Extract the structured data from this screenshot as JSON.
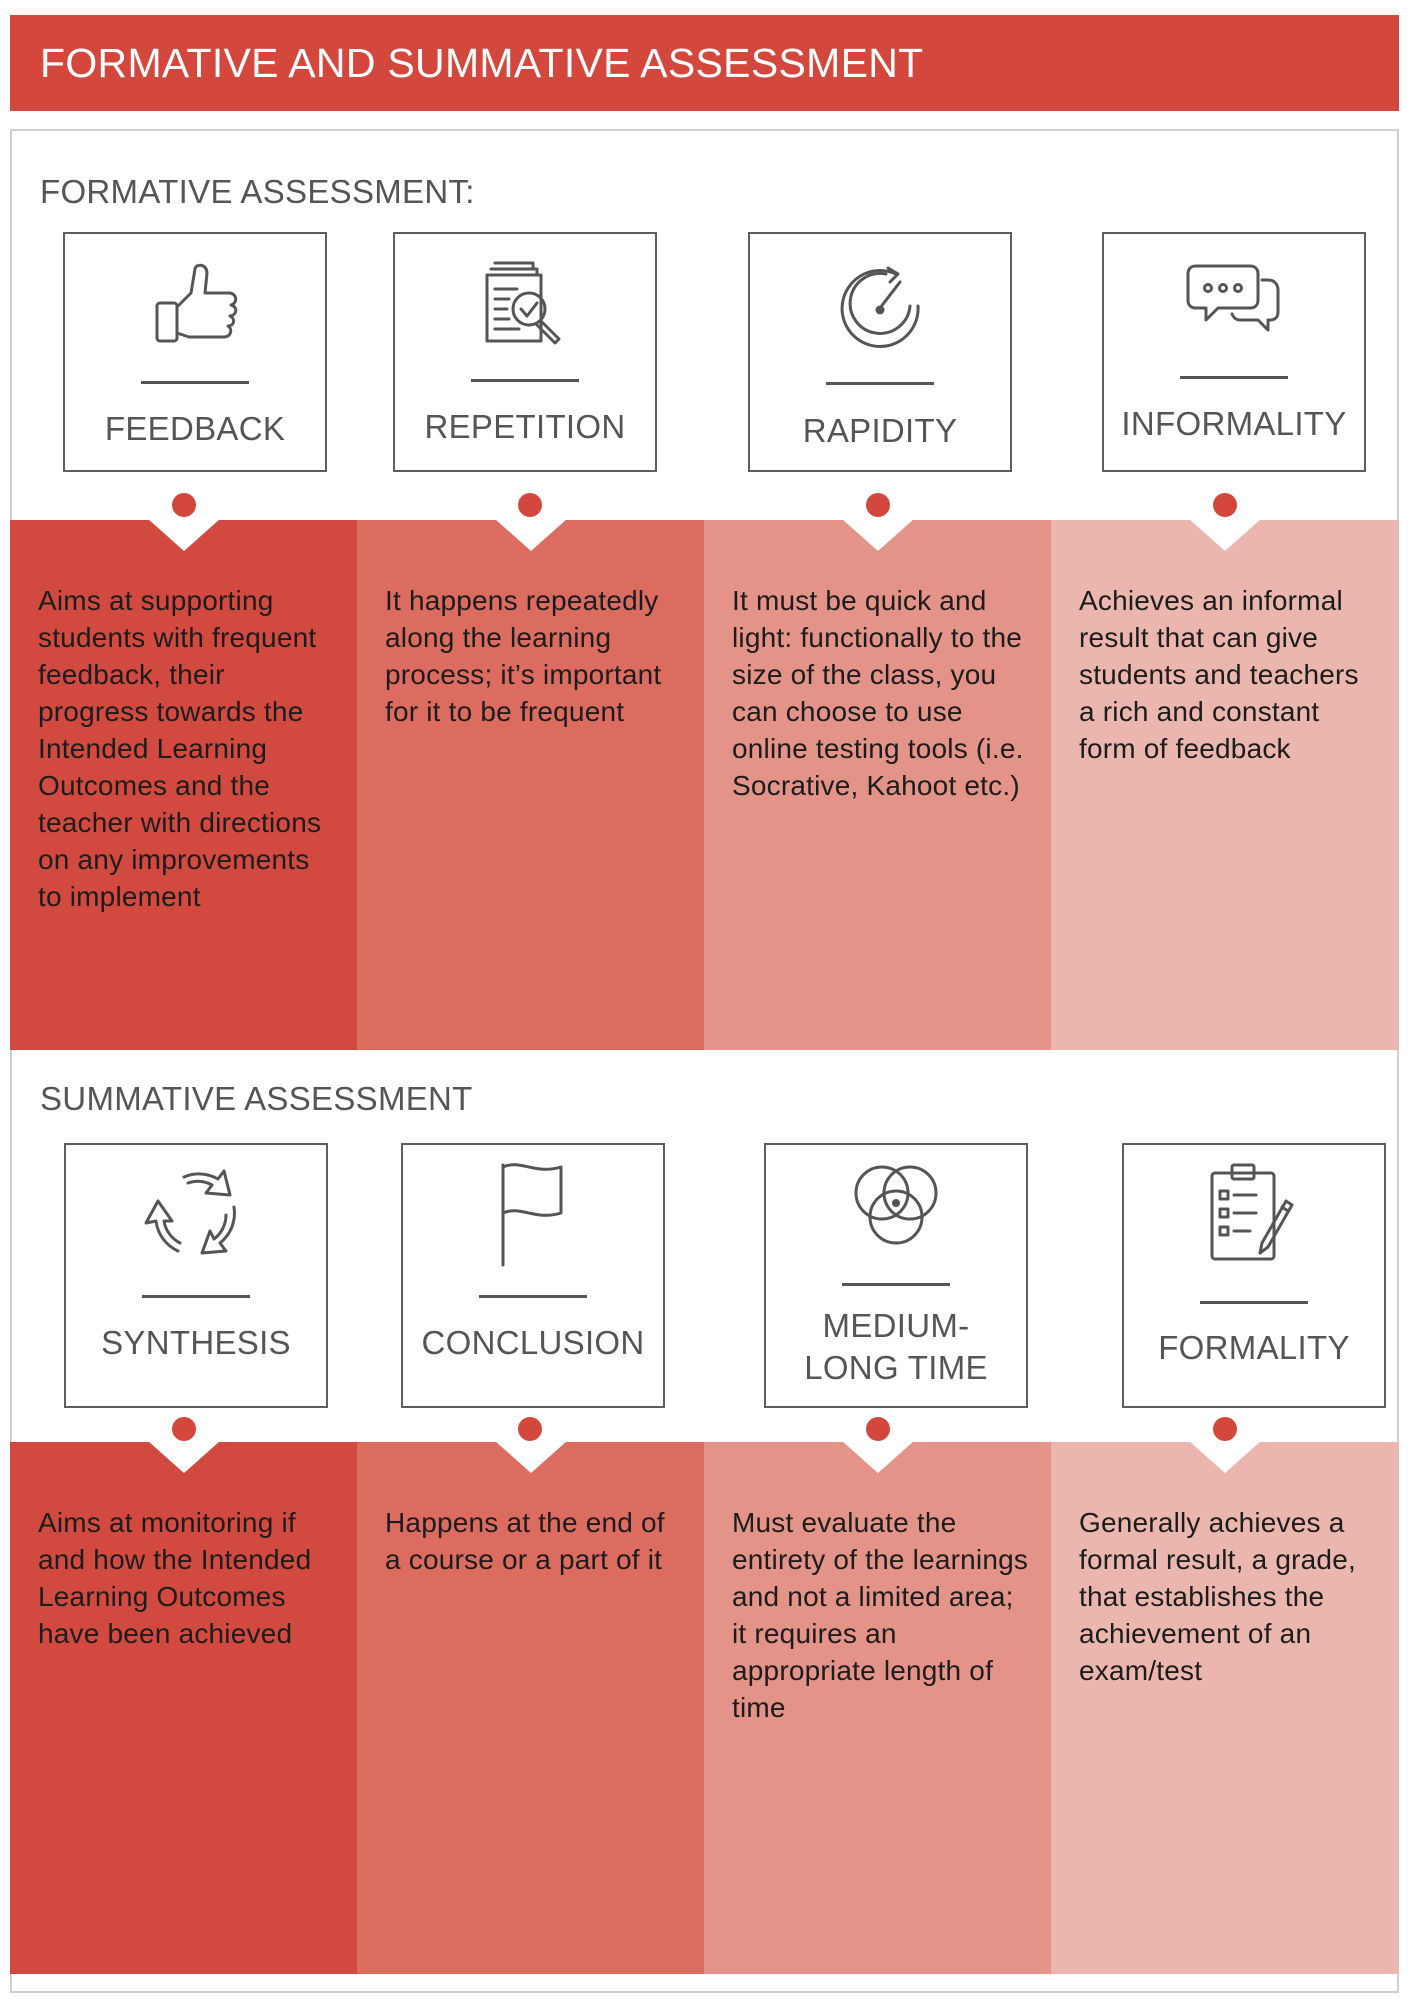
{
  "title": "FORMATIVE AND SUMMATIVE ASSESSMENT",
  "formative": {
    "heading": "FORMATIVE ASSESSMENT:",
    "items": [
      {
        "label": "FEEDBACK",
        "icon": "thumbs-up-icon",
        "description": "Aims at supporting students with frequent feedback, their progress towards the Intended Learning Outcomes and the teacher with directions on any improvements to implement"
      },
      {
        "label": "REPETITION",
        "icon": "document-magnifier-icon",
        "description": "It happens repeatedly along the learning process; it’s important for it to be frequent"
      },
      {
        "label": "RAPIDITY",
        "icon": "speedometer-icon",
        "description": "It must be quick and light: functionally to the size of the class, you can choose to use online testing tools (i.e. Socrative, Kahoot etc.)"
      },
      {
        "label": "INFORMALITY",
        "icon": "chat-bubbles-icon",
        "description": "Achieves an informal result that can give students and teachers a rich and constant form of feedback"
      }
    ]
  },
  "summative": {
    "heading": "SUMMATIVE ASSESSMENT",
    "items": [
      {
        "label": "SYNTHESIS",
        "icon": "recycle-arrows-icon",
        "description": "Aims at monitoring if and how the Intended Learning Outcomes have been achieved"
      },
      {
        "label": "CONCLUSION",
        "icon": "flag-icon",
        "description": "Happens at the end of a course or a part of it"
      },
      {
        "label": "MEDIUM-LONG TIME",
        "icon": "venn-circles-icon",
        "description": "Must evaluate the entirety of the learnings and not a limited area; it requires an appropriate length of time"
      },
      {
        "label": "FORMALITY",
        "icon": "clipboard-checklist-icon",
        "description": "Generally achieves a formal result, a grade, that establishes the achievement of an exam/test"
      }
    ]
  },
  "colors": {
    "accent": "#d4473c",
    "column_1": "#d24a3f",
    "column_2": "#dd6c60",
    "column_3": "#e39388",
    "column_4": "#ebb6ae"
  }
}
